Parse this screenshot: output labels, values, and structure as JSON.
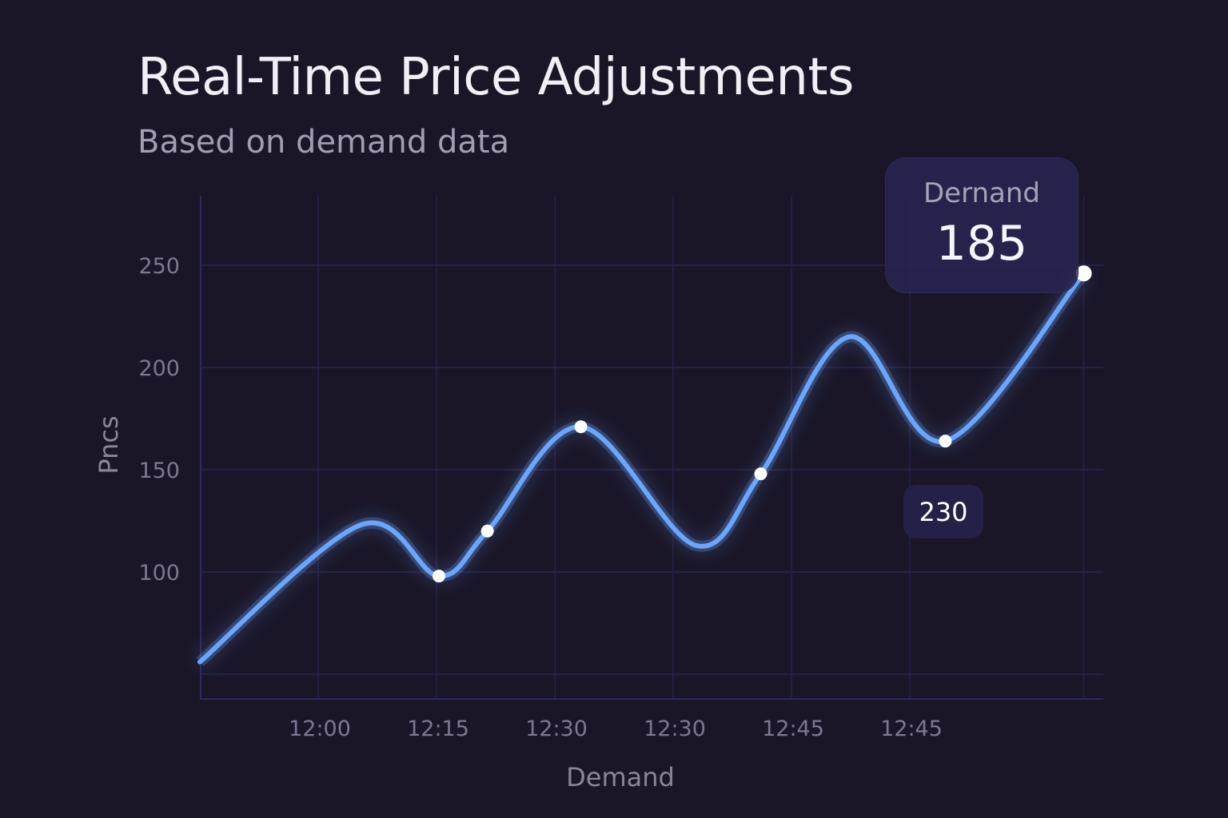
{
  "chart_data": {
    "type": "line",
    "title": "Real-Time Price Adjustments",
    "subtitle": "Based on demand data",
    "xlabel": "Demand",
    "ylabel": "Pncs",
    "x_tick_labels": [
      "12:00",
      "12:15",
      "12:30",
      "12:30",
      "12:45",
      "12:45"
    ],
    "y_ticks": [
      100,
      150,
      200,
      250
    ],
    "ylim": [
      40,
      260
    ],
    "grid": true,
    "line_color": "#6aa6ff",
    "series": [
      {
        "points": [
          [
            0,
            56
          ],
          [
            1.36,
            123
          ],
          [
            2.02,
            98
          ],
          [
            2.43,
            120
          ],
          [
            3.22,
            171
          ],
          [
            4.19,
            113
          ],
          [
            4.74,
            148
          ],
          [
            5.49,
            215
          ],
          [
            6.3,
            164
          ],
          [
            7.47,
            246
          ]
        ],
        "markers": [
          2,
          3,
          4,
          6,
          8,
          9
        ]
      }
    ],
    "tooltip": {
      "label": "Dernand",
      "value": "185"
    },
    "annotation": "230"
  }
}
